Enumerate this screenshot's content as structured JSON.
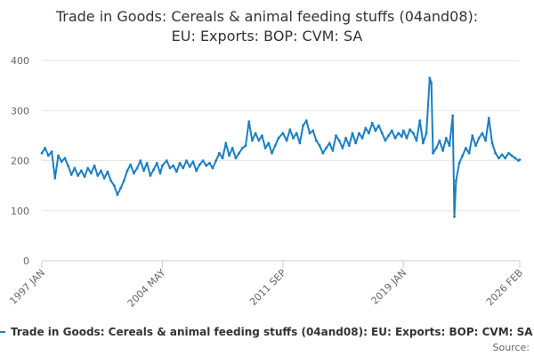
{
  "chart_data": {
    "type": "line",
    "title_line1": "Trade in Goods: Cereals & animal feeding stuffs (04and08):",
    "title_line2": "EU: Exports: BOP: CVM: SA",
    "xlabel": "",
    "ylabel": "",
    "ylim": [
      0,
      400
    ],
    "y_ticks": [
      "0",
      "100",
      "200",
      "300",
      "400"
    ],
    "y_tick_values": [
      0,
      100,
      200,
      300,
      400
    ],
    "x_ticks": [
      "1997 JAN",
      "2004 MAY",
      "2011 SEP",
      "2019 JAN",
      "2026 FEB"
    ],
    "x_tick_values": [
      1997.0,
      2004.33,
      2011.67,
      2019.0,
      2026.08
    ],
    "xlim": [
      1997.0,
      2026.08
    ],
    "grid": true,
    "legend_position": "bottom",
    "line_color": "#1a7fc3",
    "series": [
      {
        "name": "Trade in Goods: Cereals & animal feeding stuffs (04and08): EU: Exports: BOP: CVM: SA",
        "points": [
          [
            1997.0,
            215
          ],
          [
            1997.2,
            225
          ],
          [
            1997.4,
            210
          ],
          [
            1997.6,
            218
          ],
          [
            1997.8,
            165
          ],
          [
            1998.0,
            210
          ],
          [
            1998.2,
            198
          ],
          [
            1998.4,
            205
          ],
          [
            1998.6,
            190
          ],
          [
            1998.8,
            172
          ],
          [
            1999.0,
            185
          ],
          [
            1999.2,
            170
          ],
          [
            1999.4,
            180
          ],
          [
            1999.6,
            168
          ],
          [
            1999.8,
            185
          ],
          [
            2000.0,
            175
          ],
          [
            2000.2,
            190
          ],
          [
            2000.4,
            170
          ],
          [
            2000.6,
            180
          ],
          [
            2000.8,
            165
          ],
          [
            2001.0,
            178
          ],
          [
            2001.2,
            160
          ],
          [
            2001.4,
            150
          ],
          [
            2001.6,
            132
          ],
          [
            2001.8,
            145
          ],
          [
            2002.0,
            160
          ],
          [
            2002.2,
            180
          ],
          [
            2002.4,
            192
          ],
          [
            2002.6,
            175
          ],
          [
            2002.8,
            185
          ],
          [
            2003.0,
            200
          ],
          [
            2003.2,
            180
          ],
          [
            2003.4,
            195
          ],
          [
            2003.6,
            170
          ],
          [
            2003.8,
            182
          ],
          [
            2004.0,
            195
          ],
          [
            2004.2,
            175
          ],
          [
            2004.33,
            190
          ],
          [
            2004.6,
            200
          ],
          [
            2004.8,
            185
          ],
          [
            2005.0,
            190
          ],
          [
            2005.2,
            178
          ],
          [
            2005.4,
            195
          ],
          [
            2005.6,
            185
          ],
          [
            2005.8,
            200
          ],
          [
            2006.0,
            188
          ],
          [
            2006.2,
            198
          ],
          [
            2006.4,
            180
          ],
          [
            2006.6,
            192
          ],
          [
            2006.8,
            200
          ],
          [
            2007.0,
            190
          ],
          [
            2007.2,
            195
          ],
          [
            2007.4,
            185
          ],
          [
            2007.6,
            200
          ],
          [
            2007.8,
            215
          ],
          [
            2008.0,
            205
          ],
          [
            2008.2,
            235
          ],
          [
            2008.4,
            210
          ],
          [
            2008.6,
            225
          ],
          [
            2008.8,
            205
          ],
          [
            2009.0,
            215
          ],
          [
            2009.2,
            225
          ],
          [
            2009.4,
            230
          ],
          [
            2009.6,
            278
          ],
          [
            2009.8,
            240
          ],
          [
            2010.0,
            255
          ],
          [
            2010.2,
            240
          ],
          [
            2010.4,
            250
          ],
          [
            2010.6,
            225
          ],
          [
            2010.8,
            235
          ],
          [
            2011.0,
            215
          ],
          [
            2011.2,
            230
          ],
          [
            2011.4,
            245
          ],
          [
            2011.67,
            255
          ],
          [
            2011.9,
            240
          ],
          [
            2012.1,
            262
          ],
          [
            2012.3,
            245
          ],
          [
            2012.5,
            255
          ],
          [
            2012.7,
            235
          ],
          [
            2012.9,
            270
          ],
          [
            2013.1,
            280
          ],
          [
            2013.3,
            255
          ],
          [
            2013.5,
            260
          ],
          [
            2013.7,
            240
          ],
          [
            2013.9,
            230
          ],
          [
            2014.1,
            215
          ],
          [
            2014.3,
            225
          ],
          [
            2014.5,
            235
          ],
          [
            2014.7,
            220
          ],
          [
            2014.9,
            250
          ],
          [
            2015.1,
            240
          ],
          [
            2015.3,
            225
          ],
          [
            2015.5,
            245
          ],
          [
            2015.7,
            230
          ],
          [
            2015.9,
            255
          ],
          [
            2016.1,
            235
          ],
          [
            2016.3,
            255
          ],
          [
            2016.5,
            245
          ],
          [
            2016.7,
            265
          ],
          [
            2016.9,
            255
          ],
          [
            2017.1,
            275
          ],
          [
            2017.3,
            260
          ],
          [
            2017.5,
            270
          ],
          [
            2017.7,
            255
          ],
          [
            2017.9,
            240
          ],
          [
            2018.1,
            250
          ],
          [
            2018.3,
            260
          ],
          [
            2018.5,
            245
          ],
          [
            2018.7,
            255
          ],
          [
            2018.9,
            248
          ],
          [
            2019.0,
            260
          ],
          [
            2019.2,
            245
          ],
          [
            2019.4,
            262
          ],
          [
            2019.6,
            255
          ],
          [
            2019.8,
            240
          ],
          [
            2020.0,
            280
          ],
          [
            2020.2,
            235
          ],
          [
            2020.4,
            255
          ],
          [
            2020.6,
            365
          ],
          [
            2020.7,
            355
          ],
          [
            2020.8,
            215
          ],
          [
            2021.0,
            225
          ],
          [
            2021.2,
            240
          ],
          [
            2021.4,
            220
          ],
          [
            2021.6,
            245
          ],
          [
            2021.8,
            230
          ],
          [
            2022.0,
            290
          ],
          [
            2022.1,
            88
          ],
          [
            2022.2,
            160
          ],
          [
            2022.4,
            195
          ],
          [
            2022.6,
            210
          ],
          [
            2022.8,
            225
          ],
          [
            2023.0,
            215
          ],
          [
            2023.2,
            250
          ],
          [
            2023.4,
            230
          ],
          [
            2023.6,
            245
          ],
          [
            2023.8,
            255
          ],
          [
            2024.0,
            240
          ],
          [
            2024.2,
            285
          ],
          [
            2024.4,
            235
          ],
          [
            2024.6,
            215
          ],
          [
            2024.8,
            205
          ],
          [
            2025.0,
            212
          ],
          [
            2025.2,
            205
          ],
          [
            2025.4,
            215
          ],
          [
            2025.6,
            210
          ],
          [
            2025.8,
            205
          ],
          [
            2026.0,
            200
          ],
          [
            2026.08,
            202
          ]
        ]
      }
    ]
  },
  "legend": {
    "label": "Trade in Goods: Cereals & animal feeding stuffs (04and08): EU: Exports: BOP: CVM: SA"
  },
  "source": {
    "label": "Source:"
  }
}
